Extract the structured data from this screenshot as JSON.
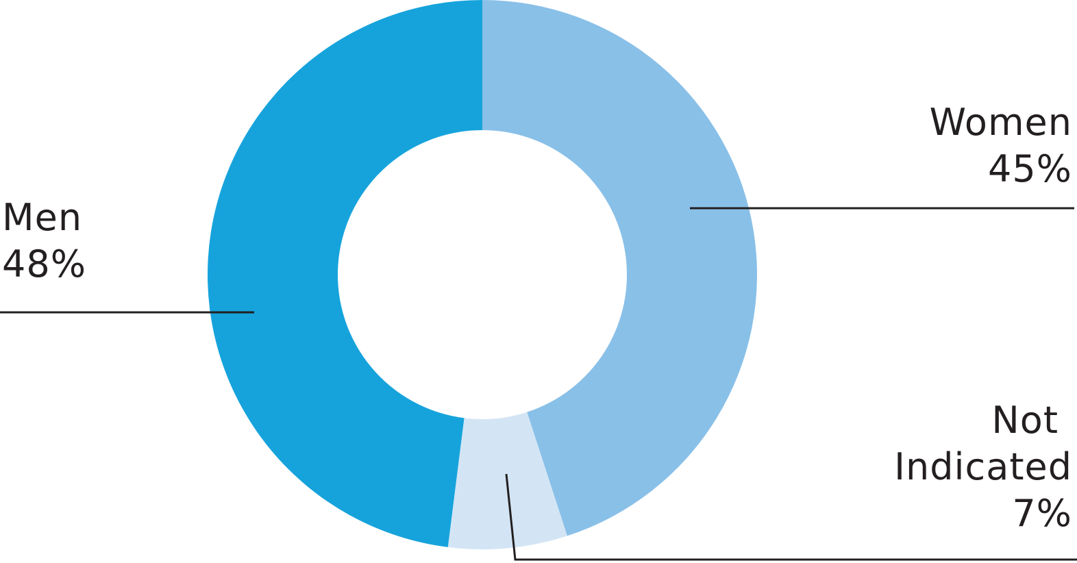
{
  "chart_data": {
    "type": "pie",
    "donut": true,
    "title": "",
    "slices": [
      {
        "label": "Women",
        "value": 45,
        "value_label": "45%",
        "color": "#89c0e8"
      },
      {
        "label": "Not Indicated",
        "value": 7,
        "value_label": "7%",
        "color": "#d3e5f5"
      },
      {
        "label": "Men",
        "value": 48,
        "value_label": "48%",
        "color": "#16a3dc"
      }
    ],
    "start_angle": "top, clockwise",
    "legend": "none (leader-line labels)",
    "leader_line_color": "#231f20"
  }
}
